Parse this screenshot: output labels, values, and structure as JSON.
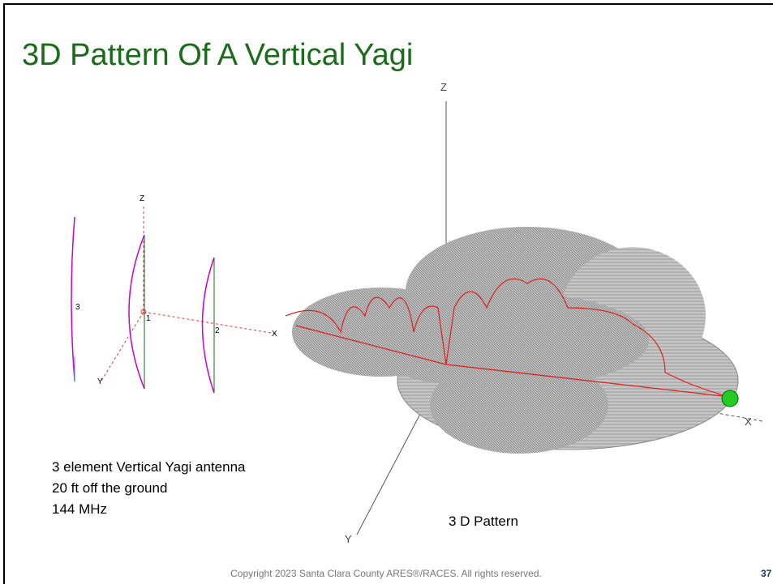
{
  "slide": {
    "title": "3D Pattern Of A Vertical Yagi",
    "description": [
      "3 element Vertical Yagi antenna",
      "20 ft off the ground",
      "144 MHz"
    ],
    "pattern_caption": "3 D Pattern",
    "footer": "Copyright 2023  Santa Clara County ARES®/RACES. All rights reserved.",
    "page_number": "37"
  },
  "antenna_diagram": {
    "element_labels": [
      "1",
      "2",
      "3"
    ],
    "axis_labels": [
      "Z",
      "X",
      "Y"
    ]
  },
  "pattern_axes": [
    "Z",
    "X",
    "Y"
  ]
}
